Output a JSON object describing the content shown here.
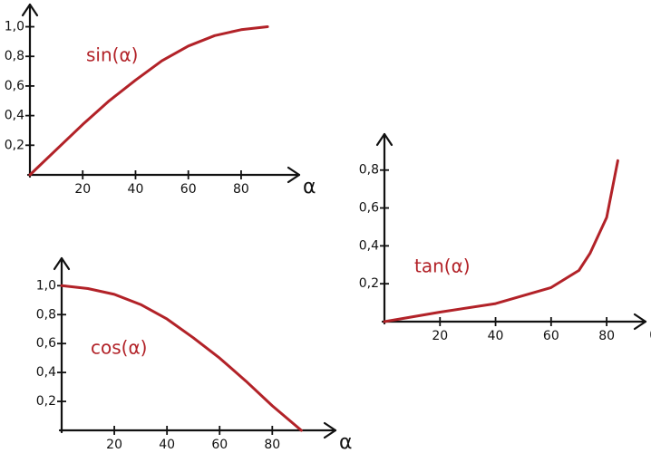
{
  "chart_data": [
    {
      "type": "line",
      "title": "sin(α)",
      "xlabel": "α",
      "color": "#b22228",
      "x": [
        0,
        10,
        20,
        30,
        40,
        50,
        60,
        70,
        80,
        90
      ],
      "values": [
        0,
        0.17,
        0.34,
        0.5,
        0.64,
        0.77,
        0.87,
        0.94,
        0.98,
        1.0
      ],
      "xlim": [
        0,
        102
      ],
      "ylim": [
        0,
        1.15
      ],
      "xticks": [
        20,
        40,
        60,
        80
      ],
      "yticks": [
        {
          "value": 0.2,
          "label": "0,2"
        },
        {
          "value": 0.4,
          "label": "0,4"
        },
        {
          "value": 0.6,
          "label": "0,6"
        },
        {
          "value": 0.8,
          "label": "0,8"
        },
        {
          "value": 1.0,
          "label": "1,0"
        }
      ]
    },
    {
      "type": "line",
      "title": "tan(α)",
      "xlabel": "α",
      "color": "#b22228",
      "x": [
        0,
        20,
        40,
        60,
        70,
        74,
        80,
        84
      ],
      "values": [
        0,
        0.05,
        0.095,
        0.18,
        0.27,
        0.36,
        0.55,
        0.85
      ],
      "xlim": [
        0,
        94
      ],
      "ylim": [
        0,
        0.99
      ],
      "xticks": [
        20,
        40,
        60,
        80
      ],
      "yticks": [
        {
          "value": 0.2,
          "label": "0,2"
        },
        {
          "value": 0.4,
          "label": "0,4"
        },
        {
          "value": 0.6,
          "label": "0,6"
        },
        {
          "value": 0.8,
          "label": "0,8"
        }
      ]
    },
    {
      "type": "line",
      "title": "cos(α)",
      "xlabel": "α",
      "color": "#b22228",
      "x": [
        0,
        10,
        20,
        30,
        40,
        50,
        60,
        70,
        80,
        91
      ],
      "values": [
        1.0,
        0.98,
        0.94,
        0.87,
        0.77,
        0.64,
        0.5,
        0.34,
        0.17,
        0
      ],
      "xlim": [
        0,
        104
      ],
      "ylim": [
        0,
        1.19
      ],
      "xticks": [
        20,
        40,
        60,
        80
      ],
      "yticks": [
        {
          "value": 0.2,
          "label": "0,2"
        },
        {
          "value": 0.4,
          "label": "0,4"
        },
        {
          "value": 0.6,
          "label": "0,6"
        },
        {
          "value": 0.8,
          "label": "0,8"
        },
        {
          "value": 1.0,
          "label": "1,0"
        }
      ]
    }
  ]
}
